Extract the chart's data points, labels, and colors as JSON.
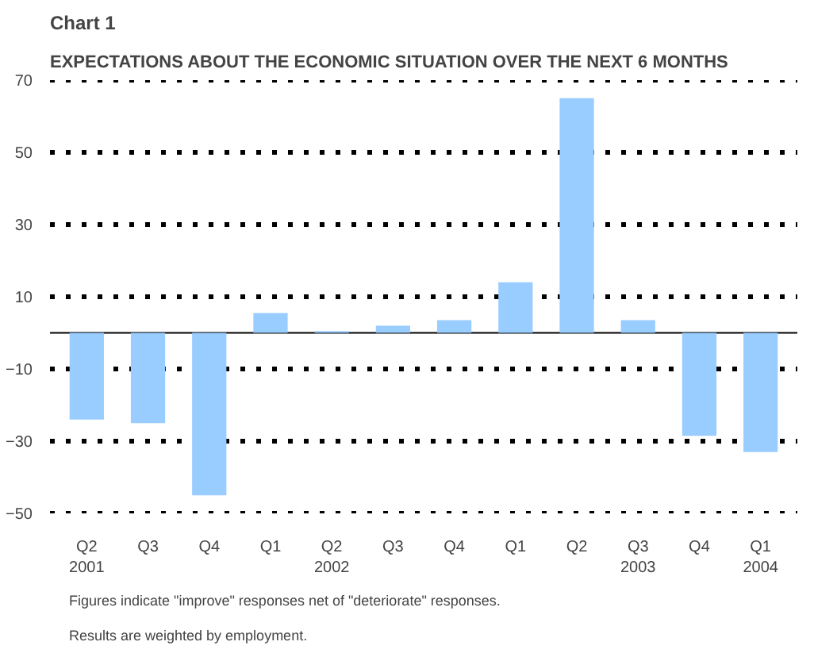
{
  "chart_data": {
    "type": "bar",
    "title": "Chart 1",
    "subtitle": "EXPECTATIONS ABOUT THE ECONOMIC SITUATION OVER THE NEXT 6 MONTHS",
    "categories": [
      "Q2\n2001",
      "Q3",
      "Q4",
      "Q1",
      "Q2\n2002",
      "Q3",
      "Q4",
      "Q1",
      "Q2",
      "Q3\n2003",
      "Q4",
      "Q1\n2004"
    ],
    "values": [
      -24,
      -25,
      -45,
      5.5,
      0.5,
      2,
      3.5,
      14,
      65,
      3.5,
      -28.5,
      -33
    ],
    "color": "#99ccff",
    "ylim": [
      -50,
      70
    ],
    "yticks": [
      -50,
      -30,
      -10,
      10,
      30,
      50,
      70
    ],
    "grid": "y",
    "annotations": [
      "Figures indicate \"improve\" responses net of \"deteriorate\" responses.",
      "Results are weighted by employment."
    ]
  }
}
